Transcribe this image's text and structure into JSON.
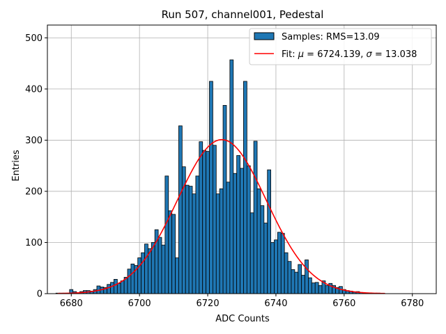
{
  "chart_data": {
    "type": "bar",
    "title": "Run 507, channel001, Pedestal",
    "xlabel": "ADC Counts",
    "ylabel": "Entries",
    "xlim": [
      6673,
      6787
    ],
    "ylim": [
      0,
      525
    ],
    "xticks": [
      6680,
      6700,
      6720,
      6740,
      6760,
      6780
    ],
    "yticks": [
      0,
      100,
      200,
      300,
      400,
      500
    ],
    "grid": true,
    "legend_position": "top-right",
    "bin_width": 1,
    "bars": {
      "name": "Samples: RMS=13.09",
      "color": "#1f77b4",
      "edgecolor": "#000000",
      "x": [
        6676,
        6677,
        6678,
        6679,
        6680,
        6681,
        6682,
        6683,
        6684,
        6685,
        6686,
        6687,
        6688,
        6689,
        6690,
        6691,
        6692,
        6693,
        6694,
        6695,
        6696,
        6697,
        6698,
        6699,
        6700,
        6701,
        6702,
        6703,
        6704,
        6705,
        6706,
        6707,
        6708,
        6709,
        6710,
        6711,
        6712,
        6713,
        6714,
        6715,
        6716,
        6717,
        6718,
        6719,
        6720,
        6721,
        6722,
        6723,
        6724,
        6725,
        6726,
        6727,
        6728,
        6729,
        6730,
        6731,
        6732,
        6733,
        6734,
        6735,
        6736,
        6737,
        6738,
        6739,
        6740,
        6741,
        6742,
        6743,
        6744,
        6745,
        6746,
        6747,
        6748,
        6749,
        6750,
        6751,
        6752,
        6753,
        6754,
        6755,
        6756,
        6757,
        6758,
        6759,
        6760,
        6761,
        6762,
        6763,
        6764,
        6765,
        6766,
        6767,
        6768,
        6769,
        6770,
        6771,
        6772
      ],
      "values": [
        1,
        1,
        1,
        1,
        8,
        4,
        2,
        4,
        6,
        6,
        5,
        8,
        15,
        13,
        12,
        18,
        22,
        28,
        20,
        25,
        32,
        48,
        58,
        55,
        70,
        80,
        97,
        88,
        100,
        125,
        110,
        95,
        230,
        162,
        155,
        70,
        328,
        248,
        212,
        210,
        195,
        230,
        297,
        280,
        278,
        415,
        290,
        195,
        205,
        368,
        218,
        457,
        235,
        270,
        245,
        415,
        250,
        158,
        298,
        205,
        172,
        138,
        242,
        100,
        105,
        120,
        118,
        80,
        63,
        47,
        42,
        57,
        36,
        66,
        31,
        21,
        22,
        16,
        25,
        16,
        20,
        16,
        12,
        14,
        8,
        6,
        5,
        3,
        4,
        2,
        1,
        1,
        1,
        0,
        1,
        0,
        0
      ]
    },
    "fit": {
      "name": "Fit: μ = 6724.139, σ = 13.038",
      "label_prefix": "Fit: ",
      "label_mu_sym": "μ",
      "label_mu_value": " = 6724.139, ",
      "label_sigma_sym": "σ",
      "label_sigma_value": " = 13.038",
      "color": "#ff0000",
      "mu": 6724.139,
      "sigma": 13.038,
      "amplitude": 301,
      "x_range": [
        6676,
        6772
      ]
    }
  }
}
